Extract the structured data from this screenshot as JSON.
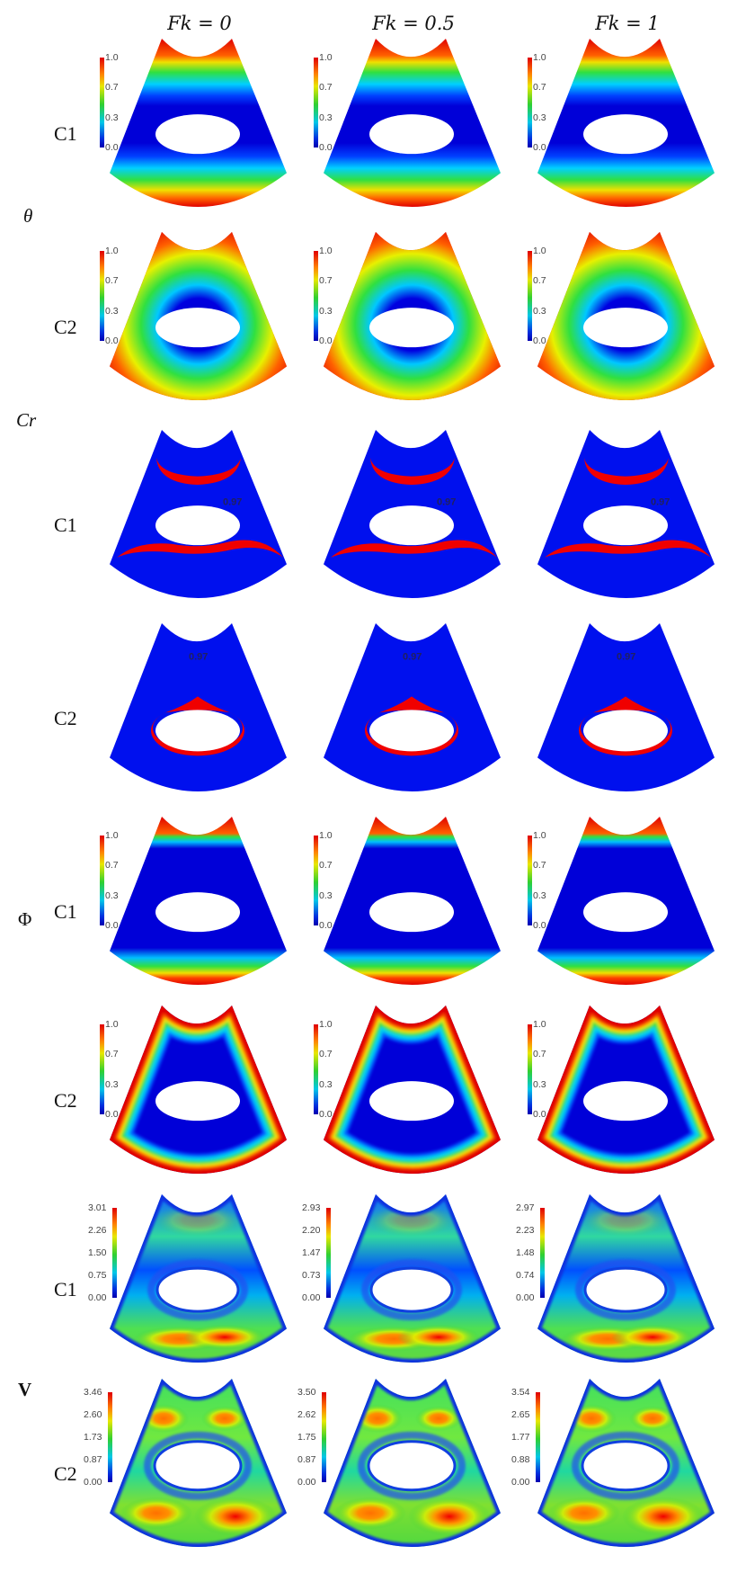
{
  "columns": [
    "Fk = 0",
    "Fk = 0.5",
    "Fk = 1"
  ],
  "colors": {
    "high": "#e00000",
    "low": "#0000d0",
    "background": "#ffffff"
  },
  "groups": [
    {
      "label": "θ",
      "rows": [
        {
          "label": "C1",
          "field": "theta_c1",
          "colorbars": [
            [
              "1.0",
              "0.7",
              "0.3",
              "0.0"
            ],
            [
              "1.0",
              "0.7",
              "0.3",
              "0.0"
            ],
            [
              "1.0",
              "0.7",
              "0.3",
              "0.0"
            ]
          ]
        },
        {
          "label": "C2",
          "field": "theta_c2",
          "colorbars": [
            [
              "1.0",
              "0.7",
              "0.3",
              "0.0"
            ],
            [
              "1.0",
              "0.7",
              "0.3",
              "0.0"
            ],
            [
              "1.0",
              "0.7",
              "0.3",
              "0.0"
            ]
          ]
        }
      ]
    },
    {
      "label": "Cr",
      "rows": [
        {
          "label": "C1",
          "field": "cr_c1",
          "annotations": [
            "0.97",
            "0.97",
            "0.97"
          ]
        },
        {
          "label": "C2",
          "field": "cr_c2",
          "annotations": [
            "0.97",
            "0.97",
            "0.97"
          ]
        }
      ]
    },
    {
      "label": "Φ",
      "rows": [
        {
          "label": "C1",
          "field": "phi_c1",
          "colorbars": [
            [
              "1.0",
              "0.7",
              "0.3",
              "0.0"
            ],
            [
              "1.0",
              "0.7",
              "0.3",
              "0.0"
            ],
            [
              "1.0",
              "0.7",
              "0.3",
              "0.0"
            ]
          ]
        },
        {
          "label": "C2",
          "field": "phi_c2",
          "colorbars": [
            [
              "1.0",
              "0.7",
              "0.3",
              "0.0"
            ],
            [
              "1.0",
              "0.7",
              "0.3",
              "0.0"
            ],
            [
              "1.0",
              "0.7",
              "0.3",
              "0.0"
            ]
          ]
        }
      ]
    },
    {
      "label": "V",
      "rows": [
        {
          "label": "C1",
          "field": "v_c1",
          "colorbars": [
            [
              "3.01",
              "2.26",
              "1.50",
              "0.75",
              "0.00"
            ],
            [
              "2.93",
              "2.20",
              "1.47",
              "0.73",
              "0.00"
            ],
            [
              "2.97",
              "2.23",
              "1.48",
              "0.74",
              "0.00"
            ]
          ]
        },
        {
          "label": "C2",
          "field": "v_c2",
          "colorbars": [
            [
              "3.46",
              "2.60",
              "1.73",
              "0.87",
              "0.00"
            ],
            [
              "3.50",
              "2.62",
              "1.75",
              "0.87",
              "0.00"
            ],
            [
              "3.54",
              "2.65",
              "1.77",
              "0.88",
              "0.00"
            ]
          ]
        }
      ]
    }
  ]
}
